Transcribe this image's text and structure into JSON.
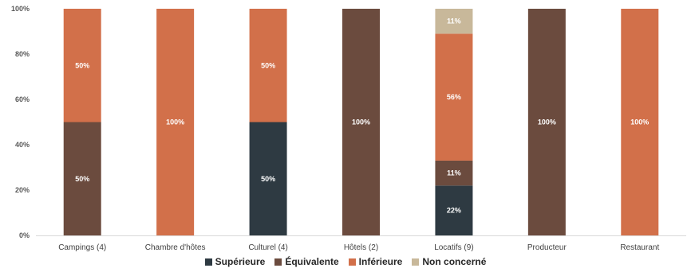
{
  "chart_data": {
    "type": "bar",
    "stacked": true,
    "categories": [
      "Campings (4)",
      "Chambre d'hôtes",
      "Culturel (4)",
      "Hôtels (2)",
      "Locatifs (9)",
      "Producteur",
      "Restaurant"
    ],
    "series": [
      {
        "name": "Supérieure",
        "color": "#2e3a42",
        "values": [
          0,
          0,
          50,
          0,
          22,
          0,
          0
        ]
      },
      {
        "name": "Équivalente",
        "color": "#6b4b3e",
        "values": [
          50,
          0,
          0,
          100,
          11,
          100,
          0
        ]
      },
      {
        "name": "Inférieure",
        "color": "#d2704a",
        "values": [
          50,
          100,
          50,
          0,
          56,
          0,
          100
        ]
      },
      {
        "name": "Non concerné",
        "color": "#c8b89a",
        "values": [
          0,
          0,
          0,
          0,
          11,
          0,
          0
        ]
      }
    ],
    "ylim": [
      0,
      100
    ],
    "yticks": [
      "0%",
      "20%",
      "40%",
      "60%",
      "80%",
      "100%"
    ],
    "data_labels": true,
    "legend_position": "bottom",
    "grid": false
  }
}
